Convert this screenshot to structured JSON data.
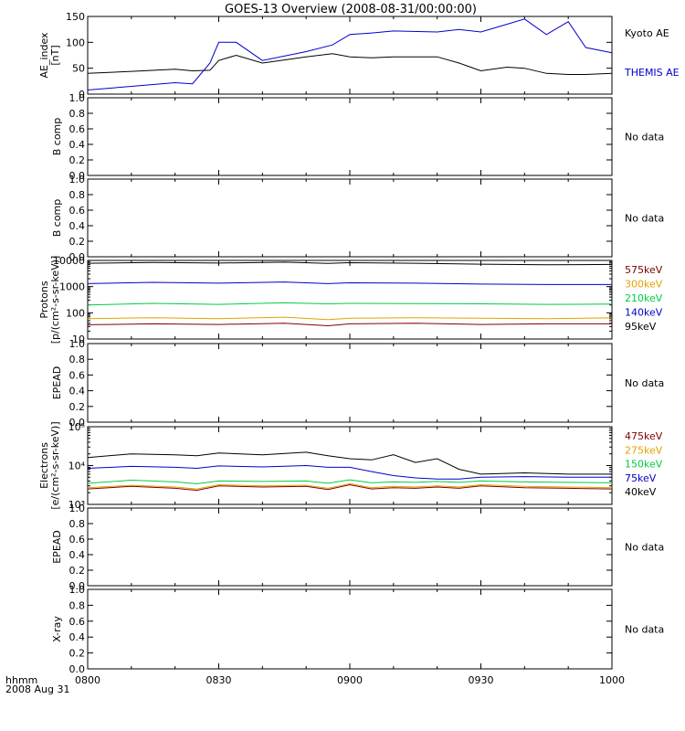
{
  "title": "GOES-13 Overview (2008-08-31/00:00:00)",
  "time_axis": {
    "ticks": [
      "0800",
      "0830",
      "0900",
      "0930",
      "1000"
    ],
    "corner_label_1": "hhmm",
    "corner_label_2": "2008 Aug 31"
  },
  "no_data_text": "No data",
  "chart_data": [
    {
      "type": "line",
      "ylabel": "AE_index [nT]",
      "ylabel_line1": "AE_index",
      "ylabel_line2": "[nT]",
      "ylim": [
        0,
        150
      ],
      "yscale": "linear",
      "yticks": [
        "0",
        "50",
        "100",
        "150"
      ],
      "x": [
        "08:00",
        "08:10",
        "08:20",
        "08:24",
        "08:28",
        "08:30",
        "08:34",
        "08:40",
        "08:50",
        "08:56",
        "09:00",
        "09:05",
        "09:10",
        "09:20",
        "09:25",
        "09:30",
        "09:36",
        "09:40",
        "09:45",
        "09:50",
        "09:54",
        "10:00"
      ],
      "series": [
        {
          "name": "Kyoto AE",
          "color": "#000000",
          "values": [
            40,
            44,
            48,
            45,
            46,
            65,
            75,
            60,
            72,
            78,
            72,
            70,
            72,
            72,
            60,
            45,
            52,
            50,
            40,
            38,
            38,
            40
          ]
        },
        {
          "name": "THEMIS AE",
          "color": "#0000cc",
          "values": [
            8,
            15,
            22,
            20,
            60,
            100,
            100,
            65,
            82,
            95,
            115,
            118,
            122,
            120,
            125,
            120,
            135,
            145,
            115,
            140,
            90,
            80
          ]
        }
      ]
    },
    {
      "type": "line",
      "ylabel": "B comp",
      "ylim": [
        0,
        1.0
      ],
      "yticks": [
        "0.0",
        "0.2",
        "0.4",
        "0.6",
        "0.8",
        "1.0"
      ],
      "no_data": true
    },
    {
      "type": "line",
      "ylabel": "B comp",
      "ylim": [
        0,
        1.0
      ],
      "yticks": [
        "0.0",
        "0.2",
        "0.4",
        "0.6",
        "0.8",
        "1.0"
      ],
      "no_data": true
    },
    {
      "type": "line",
      "ylabel": "Protons [p/(cm2-s-sr-keV)]",
      "ylabel_line1": "Protons",
      "ylabel_line2": "[p/(cm²-s-sr-keV)]",
      "yscale": "log",
      "ylim": [
        10,
        10000
      ],
      "yticks": [
        "10",
        "100",
        "1000",
        "10000"
      ],
      "x": [
        "08:00",
        "08:15",
        "08:30",
        "08:45",
        "08:55",
        "09:00",
        "09:15",
        "09:30",
        "09:45",
        "10:00"
      ],
      "series": [
        {
          "name": "575keV",
          "color": "#800000",
          "values": [
            35,
            38,
            36,
            40,
            32,
            38,
            40,
            36,
            38,
            38
          ]
        },
        {
          "name": "300keV",
          "color": "#e6a000",
          "values": [
            60,
            65,
            60,
            68,
            55,
            62,
            65,
            62,
            60,
            64
          ]
        },
        {
          "name": "210keV",
          "color": "#00cc44",
          "values": [
            200,
            230,
            210,
            240,
            220,
            230,
            225,
            220,
            210,
            215
          ]
        },
        {
          "name": "140keV",
          "color": "#0000cc",
          "values": [
            1300,
            1450,
            1350,
            1500,
            1300,
            1400,
            1350,
            1250,
            1200,
            1200
          ]
        },
        {
          "name": "95keV",
          "color": "#000000",
          "values": [
            7800,
            8300,
            7900,
            8600,
            7700,
            8200,
            7800,
            7200,
            6800,
            7000
          ]
        }
      ]
    },
    {
      "type": "line",
      "ylabel": "EPEAD",
      "ylim": [
        0,
        1.0
      ],
      "yticks": [
        "0.0",
        "0.2",
        "0.4",
        "0.6",
        "0.8",
        "1.0"
      ],
      "no_data": true
    },
    {
      "type": "line",
      "ylabel": "Electrons [e/(cm2-s-sr-keV)]",
      "ylabel_line1": "Electrons",
      "ylabel_line2": "[e/(cm²-s-sr-keV)]",
      "yscale": "log",
      "ylim": [
        1000,
        100000
      ],
      "yticks": [
        "10³",
        "10⁴",
        "10⁵"
      ],
      "x": [
        "08:00",
        "08:10",
        "08:20",
        "08:25",
        "08:30",
        "08:40",
        "08:50",
        "08:55",
        "09:00",
        "09:05",
        "09:10",
        "09:15",
        "09:20",
        "09:25",
        "09:30",
        "09:40",
        "09:50",
        "10:00"
      ],
      "series": [
        {
          "name": "475keV",
          "color": "#800000",
          "values": [
            2500,
            2900,
            2600,
            2300,
            3000,
            2800,
            2900,
            2400,
            3200,
            2500,
            2700,
            2600,
            2800,
            2600,
            3000,
            2700,
            2600,
            2500
          ]
        },
        {
          "name": "275keV",
          "color": "#e6a000",
          "values": [
            2700,
            3100,
            2800,
            2500,
            3200,
            3000,
            3100,
            2600,
            3400,
            2700,
            2900,
            2800,
            3000,
            2800,
            3200,
            2900,
            2800,
            2700
          ]
        },
        {
          "name": "150keV",
          "color": "#00cc44",
          "values": [
            3500,
            4200,
            3800,
            3400,
            4000,
            3900,
            4000,
            3500,
            4300,
            3600,
            3800,
            3700,
            3900,
            3700,
            4000,
            3800,
            3700,
            3600
          ]
        },
        {
          "name": "75keV",
          "color": "#0000cc",
          "values": [
            8500,
            9500,
            9000,
            8500,
            9800,
            9200,
            10000,
            9000,
            9000,
            7000,
            5500,
            4800,
            4500,
            4500,
            5000,
            5200,
            5000,
            5000
          ]
        },
        {
          "name": "40keV",
          "color": "#000000",
          "values": [
            16000,
            20000,
            19000,
            18000,
            21000,
            19000,
            22000,
            18000,
            15000,
            14000,
            19000,
            12000,
            15000,
            8000,
            6000,
            6500,
            6000,
            6000
          ]
        }
      ]
    },
    {
      "type": "line",
      "ylabel": "EPEAD",
      "ylim": [
        0,
        1.0
      ],
      "yticks": [
        "0.0",
        "0.2",
        "0.4",
        "0.6",
        "0.8",
        "1.0"
      ],
      "no_data": true
    },
    {
      "type": "line",
      "ylabel": "X-ray",
      "ylim": [
        0,
        1.0
      ],
      "yticks": [
        "0.0",
        "0.2",
        "0.4",
        "0.6",
        "0.8",
        "1.0"
      ],
      "no_data": true
    }
  ]
}
